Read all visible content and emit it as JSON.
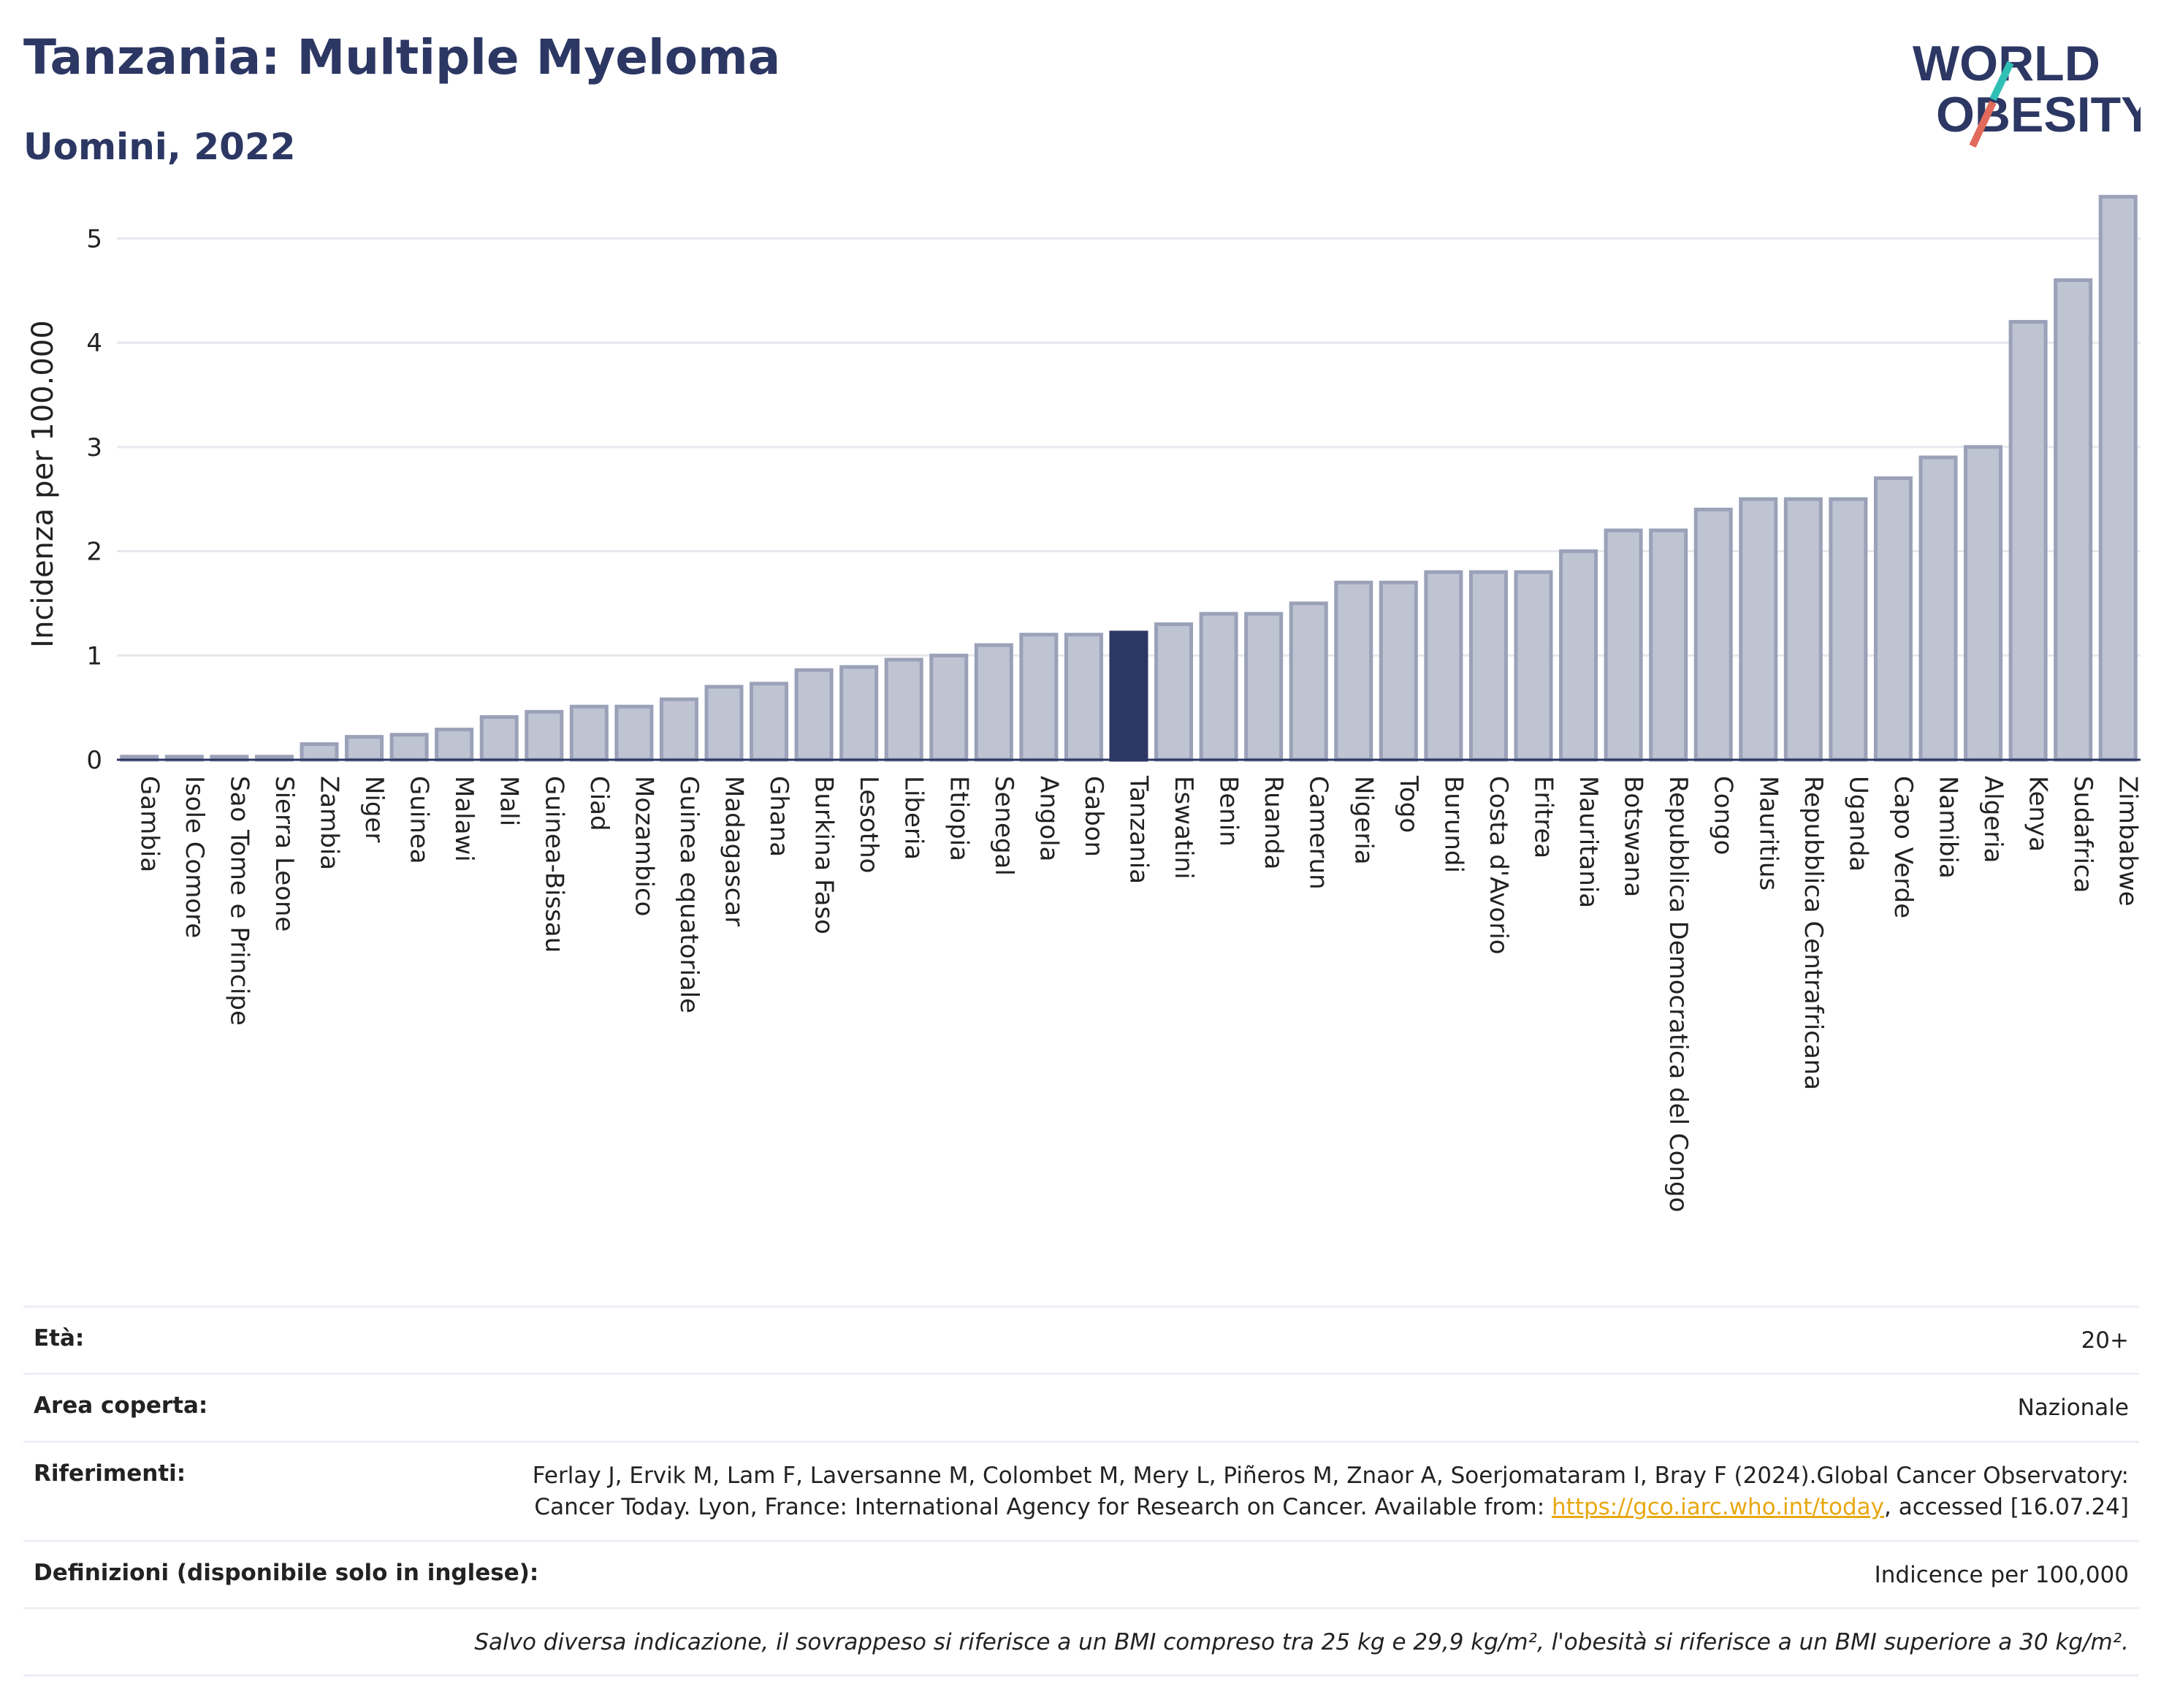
{
  "header": {
    "title": "Tanzania: Multiple Myeloma",
    "subtitle": "Uomini, 2022"
  },
  "logo": {
    "line1": "WORLD",
    "line2": "OBESITY",
    "icon": "world-obesity-logo"
  },
  "colors": {
    "bar": "#bfc4d3",
    "bar_stroke": "#9aa1b8",
    "highlight": "#2c3763",
    "title": "#2c3763",
    "grid": "#e6e8ee"
  },
  "chart_data": {
    "type": "bar",
    "ylabel": "Incidenza per 100.000",
    "xlabel": "",
    "ylim": [
      0,
      5.5
    ],
    "yticks": [
      0,
      1,
      2,
      3,
      4,
      5
    ],
    "grid": true,
    "highlight": "Tanzania",
    "categories": [
      "Gambia",
      "Isole Comore",
      "Sao Tome e Principe",
      "Sierra Leone",
      "Zambia",
      "Niger",
      "Guinea",
      "Malawi",
      "Mali",
      "Guinea-Bissau",
      "Ciad",
      "Mozambico",
      "Guinea equatoriale",
      "Madagascar",
      "Ghana",
      "Burkina Faso",
      "Lesotho",
      "Liberia",
      "Etiopia",
      "Senegal",
      "Angola",
      "Gabon",
      "Tanzania",
      "Eswatini",
      "Benin",
      "Ruanda",
      "Camerun",
      "Nigeria",
      "Togo",
      "Burundi",
      "Costa d'Avorio",
      "Eritrea",
      "Mauritania",
      "Botswana",
      "Repubblica Democratica del Congo",
      "Congo",
      "Mauritius",
      "Repubblica Centrafricana",
      "Uganda",
      "Capo Verde",
      "Namibia",
      "Algeria",
      "Kenya",
      "Sudafrica",
      "Zimbabwe"
    ],
    "values": [
      0.03,
      0.03,
      0.03,
      0.03,
      0.15,
      0.22,
      0.24,
      0.29,
      0.41,
      0.46,
      0.51,
      0.51,
      0.58,
      0.7,
      0.73,
      0.86,
      0.89,
      0.96,
      1.0,
      1.1,
      1.2,
      1.2,
      1.22,
      1.3,
      1.4,
      1.4,
      1.5,
      1.7,
      1.7,
      1.8,
      1.8,
      1.8,
      2.0,
      2.2,
      2.2,
      2.4,
      2.5,
      2.5,
      2.5,
      2.7,
      2.9,
      3.0,
      4.2,
      4.6,
      5.4
    ]
  },
  "info": {
    "age_label": "Età:",
    "age_value": "20+",
    "area_label": "Area coperta:",
    "area_value": "Nazionale",
    "ref_label": "Riferimenti:",
    "ref_text_1": "Ferlay J, Ervik M, Lam F, Laversanne M, Colombet M, Mery L, Piñeros M, Znaor A, Soerjomataram I, Bray F (2024).Global Cancer Observatory: Cancer Today. Lyon, France: International Agency for Research on Cancer. Available from: ",
    "ref_link": "https://gco.iarc.who.int/today",
    "ref_text_2": ", accessed [16.07.24]",
    "def_label": "Definizioni (disponibile solo in inglese):",
    "def_value": "Indicence per 100,000",
    "note": "Salvo diversa indicazione, il sovrappeso si riferisce a un BMI compreso tra 25 kg e 29,9 kg/m², l'obesità si riferisce a un BMI superiore a 30 kg/m²."
  }
}
